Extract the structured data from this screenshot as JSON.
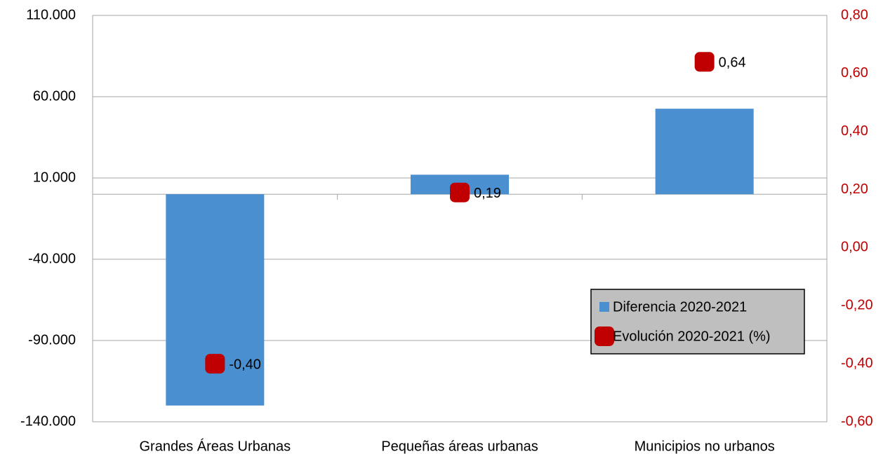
{
  "chart_data": {
    "type": "bar",
    "categories": [
      "Grandes Áreas Urbanas",
      "Pequeñas áreas urbanas",
      "Municipios no urbanos"
    ],
    "series": [
      {
        "name": "Diferencia 2020-2021",
        "type": "bar",
        "color": "#4a8fd0",
        "values": [
          -130000,
          12000,
          52600
        ]
      },
      {
        "name": "Evolución 2020-2021 (%)",
        "type": "scatter",
        "axis": "y2",
        "color": "#c00000",
        "values": [
          -0.4,
          0.19,
          0.64
        ],
        "value_labels": [
          "-0,40",
          "0,19",
          "0,64"
        ]
      }
    ],
    "ylim": [
      -140000,
      110000
    ],
    "yticks": [
      {
        "value": -140000,
        "label": "-140.000"
      },
      {
        "value": -90000,
        "label": "-90.000"
      },
      {
        "value": -40000,
        "label": "-40.000"
      },
      {
        "value": 10000,
        "label": "10.000"
      },
      {
        "value": 60000,
        "label": "60.000"
      },
      {
        "value": 110000,
        "label": "110.000"
      }
    ],
    "y2lim": [
      -0.6,
      0.8
    ],
    "y2ticks": [
      {
        "value": -0.6,
        "label": "-0,60"
      },
      {
        "value": -0.4,
        "label": "-0,40"
      },
      {
        "value": -0.2,
        "label": "-0,20"
      },
      {
        "value": 0,
        "label": "0,00"
      },
      {
        "value": 0.2,
        "label": "0,20"
      },
      {
        "value": 0.4,
        "label": "0,40"
      },
      {
        "value": 0.6,
        "label": "0,60"
      },
      {
        "value": 0.8,
        "label": "0,80"
      }
    ],
    "y2color": "#c00000",
    "grid": true,
    "legend": "lower right"
  }
}
